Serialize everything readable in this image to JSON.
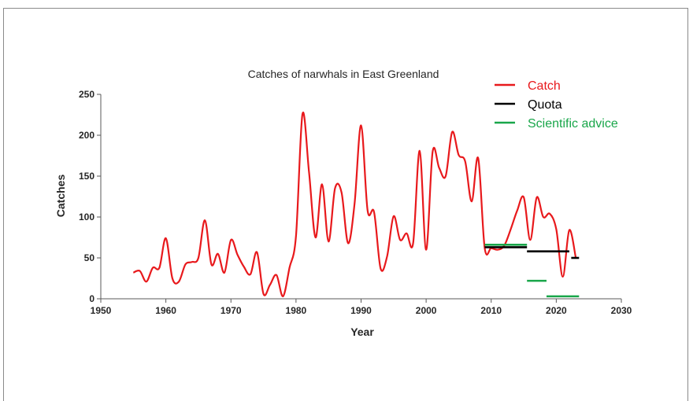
{
  "chart_data": {
    "type": "line",
    "title": "Catches of narwhals in East Greenland",
    "xlabel": "Year",
    "ylabel": "Catches",
    "xlim": [
      1950,
      2030
    ],
    "ylim": [
      0,
      250
    ],
    "xticks": [
      1950,
      1960,
      1970,
      1980,
      1990,
      2000,
      2010,
      2020,
      2030
    ],
    "yticks": [
      0,
      50,
      100,
      150,
      200,
      250
    ],
    "grid": false,
    "legend_position": "top-right",
    "series": [
      {
        "name": "Catch",
        "color": "#e8191c",
        "style": "smooth-line",
        "x": [
          1955,
          1956,
          1957,
          1958,
          1959,
          1960,
          1961,
          1962,
          1963,
          1964,
          1965,
          1966,
          1967,
          1968,
          1969,
          1970,
          1971,
          1972,
          1973,
          1974,
          1975,
          1976,
          1977,
          1978,
          1979,
          1980,
          1981,
          1982,
          1983,
          1984,
          1985,
          1986,
          1987,
          1988,
          1989,
          1990,
          1991,
          1992,
          1993,
          1994,
          1995,
          1996,
          1997,
          1998,
          1999,
          2000,
          2001,
          2002,
          2003,
          2004,
          2005,
          2006,
          2007,
          2008,
          2009,
          2010,
          2011,
          2012,
          2013,
          2014,
          2015,
          2016,
          2017,
          2018,
          2019,
          2020,
          2021,
          2022,
          2023
        ],
        "values": [
          32,
          34,
          21,
          38,
          38,
          74,
          25,
          21,
          42,
          45,
          50,
          96,
          42,
          55,
          32,
          72,
          54,
          39,
          30,
          57,
          6,
          17,
          29,
          3,
          38,
          77,
          226,
          155,
          75,
          140,
          70,
          135,
          130,
          68,
          116,
          212,
          108,
          106,
          37,
          52,
          101,
          72,
          80,
          68,
          181,
          60,
          180,
          160,
          150,
          204,
          176,
          168,
          119,
          172,
          62,
          62,
          60,
          65,
          85,
          108,
          124,
          72,
          124,
          100,
          104,
          85,
          27,
          84,
          50
        ]
      },
      {
        "name": "Quota",
        "color": "#000000",
        "style": "segments",
        "segments": [
          {
            "x": [
              2009,
              2015.5
            ],
            "value": 63
          },
          {
            "x": [
              2015.5,
              2022
            ],
            "value": 58
          },
          {
            "x": [
              2022.3,
              2023.5
            ],
            "value": 50
          }
        ]
      },
      {
        "name": "Scientific advice",
        "color": "#19a64a",
        "style": "segments",
        "segments": [
          {
            "x": [
              2009,
              2015.5
            ],
            "value": 66
          },
          {
            "x": [
              2015.5,
              2018.5
            ],
            "value": 22
          },
          {
            "x": [
              2018.5,
              2023.5
            ],
            "value": 3
          }
        ]
      }
    ]
  }
}
